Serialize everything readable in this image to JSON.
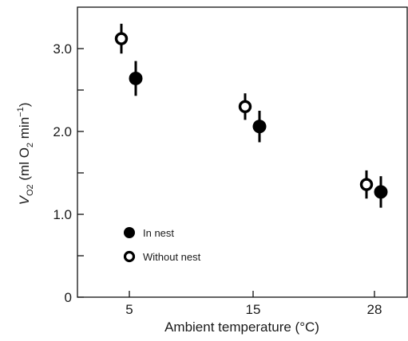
{
  "chart_data": {
    "type": "scatter",
    "title": "",
    "xlabel": "Ambient temperature (°C)",
    "ylabel": {
      "symbol": "V",
      "symbol_sub": "O2",
      "rest_open": "(ml O",
      "rest_sub": "2",
      "rest_unit": " min",
      "rest_sup": "−1",
      "rest_close": ")"
    },
    "categories": [
      "5",
      "15",
      "28"
    ],
    "yticks": [
      "0",
      "1.0",
      "2.0",
      "3.0"
    ],
    "ylim": [
      0,
      3.5
    ],
    "grid": false,
    "legend_position": "lower-left",
    "error_bars": true,
    "series": [
      {
        "name": "In nest",
        "marker": "filled-circle",
        "color": "#000000",
        "values": [
          2.64,
          2.06,
          1.27
        ],
        "errors": [
          0.21,
          0.19,
          0.19
        ]
      },
      {
        "name": "Without nest",
        "marker": "open-circle",
        "color": "#000000",
        "values": [
          3.12,
          2.3,
          1.36
        ],
        "errors": [
          0.18,
          0.16,
          0.17
        ]
      }
    ]
  }
}
